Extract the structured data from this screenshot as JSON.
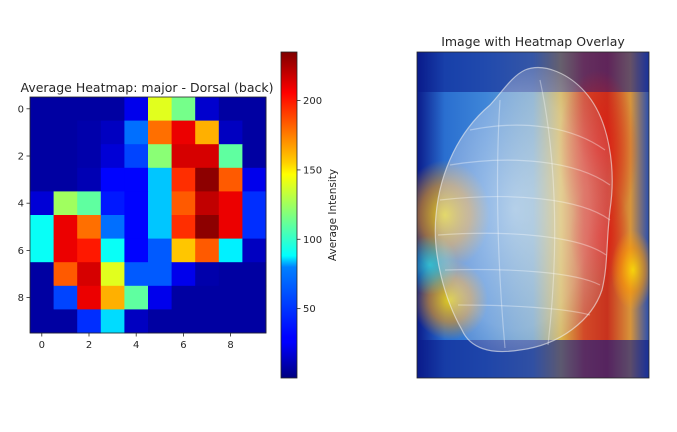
{
  "chart_data": [
    {
      "type": "heatmap",
      "title": "Average Heatmap: major - Dorsal (back)",
      "x_ticks": [
        0,
        2,
        4,
        6,
        8
      ],
      "y_ticks": [
        0,
        2,
        4,
        6,
        8
      ],
      "values": [
        [
          8,
          8,
          8,
          8,
          25,
          140,
          115,
          18,
          8,
          8
        ],
        [
          8,
          8,
          10,
          15,
          55,
          180,
          210,
          165,
          15,
          8
        ],
        [
          8,
          8,
          10,
          20,
          45,
          120,
          215,
          215,
          110,
          8
        ],
        [
          8,
          8,
          12,
          30,
          30,
          75,
          195,
          232,
          185,
          25
        ],
        [
          20,
          125,
          110,
          35,
          30,
          75,
          185,
          220,
          210,
          40
        ],
        [
          90,
          210,
          180,
          55,
          30,
          75,
          195,
          232,
          210,
          40
        ],
        [
          90,
          210,
          200,
          90,
          30,
          50,
          160,
          185,
          85,
          15
        ],
        [
          8,
          185,
          215,
          140,
          50,
          50,
          25,
          10,
          8,
          8
        ],
        [
          8,
          45,
          210,
          165,
          110,
          25,
          8,
          8,
          8,
          8
        ],
        [
          8,
          8,
          40,
          80,
          15,
          8,
          8,
          8,
          8,
          8
        ]
      ],
      "colorbar": {
        "label": "Average Intensity",
        "ticks": [
          50,
          100,
          150,
          200
        ],
        "vmin": 0,
        "vmax": 235,
        "colormap": "jet"
      }
    },
    {
      "type": "image",
      "title": "Image with Heatmap Overlay"
    }
  ]
}
